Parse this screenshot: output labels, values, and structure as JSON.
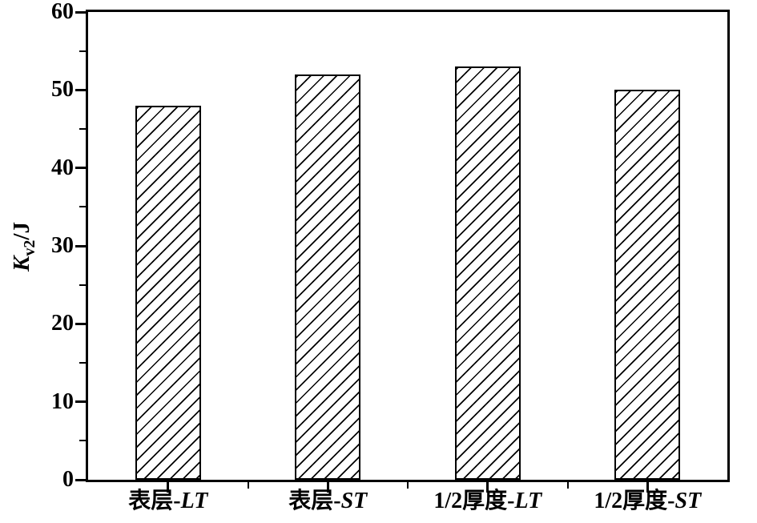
{
  "chart_data": {
    "type": "bar",
    "title": "",
    "xlabel": "",
    "ylabel": {
      "symbol": "K",
      "subscript": "v2",
      "unit": "/J"
    },
    "categories": [
      {
        "prefix": "表层-",
        "italic": "LT"
      },
      {
        "prefix": "表层-",
        "italic": "ST"
      },
      {
        "prefix": "1/2厚度-",
        "italic": "LT"
      },
      {
        "prefix": "1/2厚度-",
        "italic": "ST"
      }
    ],
    "values": [
      48,
      52,
      53,
      50
    ],
    "ylim": [
      0,
      60
    ],
    "ytick_major_step": 10,
    "ytick_minor_step": 5,
    "grid": false,
    "legend": null,
    "frame": "full-box",
    "bar_style": {
      "fill": "diagonal-hatch",
      "hatch_color": "#000000",
      "bar_background": "#ffffff",
      "border_color": "#000000"
    },
    "figure_background": "#ffffff",
    "axis_color": "#000000"
  }
}
